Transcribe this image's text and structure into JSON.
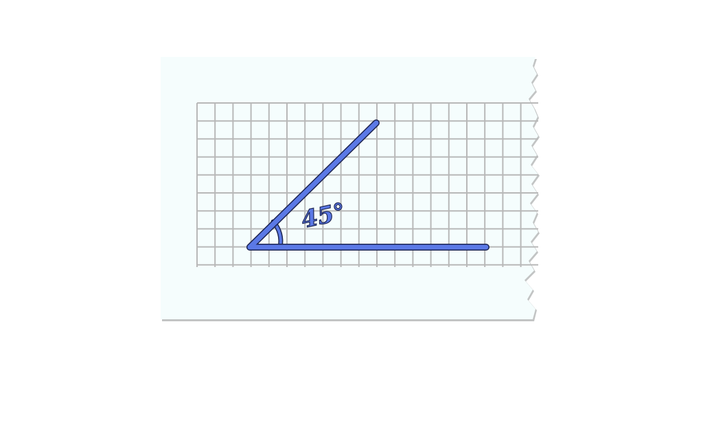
{
  "diagram": {
    "angle_degrees": 45,
    "angle_label": "45°",
    "colors": {
      "paper": "#f5fdfd",
      "paper_edge": "#c2c4c4",
      "grid": "#b8b8b8",
      "ray_fill": "#5b79e6",
      "ray_outline": "#1c2450"
    }
  }
}
